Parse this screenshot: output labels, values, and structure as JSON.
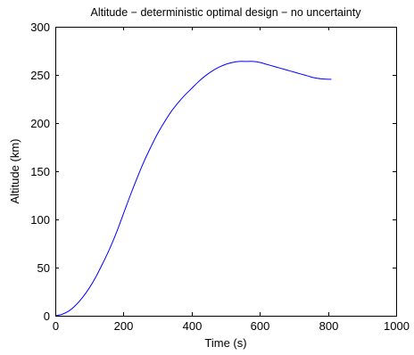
{
  "chart_data": {
    "type": "line",
    "title": "Altitude − deterministic optimal design − no uncertainty",
    "xlabel": "Time (s)",
    "ylabel": "Altitude (km)",
    "xlim": [
      0,
      1000
    ],
    "ylim": [
      0,
      300
    ],
    "xticks": [
      "0",
      "200",
      "400",
      "600",
      "800",
      "1000"
    ],
    "yticks": [
      "0",
      "50",
      "100",
      "150",
      "200",
      "250",
      "300"
    ],
    "grid": false,
    "legend": "none",
    "series": [
      {
        "color": "#0000ff",
        "x": [
          0,
          20,
          40,
          60,
          80,
          100,
          120,
          140,
          160,
          180,
          200,
          220,
          240,
          260,
          280,
          300,
          320,
          340,
          360,
          380,
          400,
          420,
          440,
          460,
          480,
          500,
          520,
          540,
          560,
          580,
          600,
          620,
          640,
          660,
          680,
          700,
          720,
          740,
          760,
          780,
          800,
          810
        ],
        "y": [
          0,
          1.5,
          5,
          11,
          19,
          29,
          41,
          55,
          70,
          87,
          106,
          125,
          143,
          160,
          175,
          189,
          201,
          212,
          221,
          229,
          236,
          243,
          249,
          254,
          258,
          261,
          263,
          264,
          264,
          264,
          263,
          261,
          259,
          257,
          255,
          253,
          251,
          249,
          247,
          246,
          245.5,
          245.5
        ]
      }
    ]
  }
}
